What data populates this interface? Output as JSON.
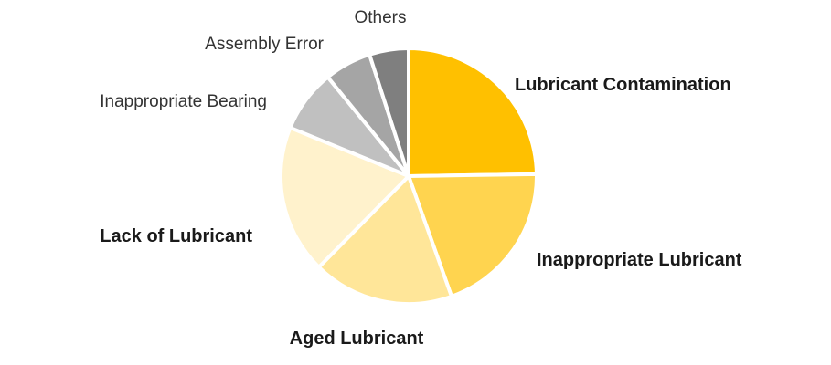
{
  "chart_data": {
    "type": "pie",
    "title": "",
    "slices": [
      {
        "label": "Lubricant Contamination",
        "value": 25,
        "color": "#ffc000",
        "emphasis": true
      },
      {
        "label": "Inappropriate Lubricant",
        "value": 20,
        "color": "#ffd44f",
        "emphasis": true
      },
      {
        "label": "Aged Lubricant",
        "value": 18,
        "color": "#ffe699",
        "emphasis": true
      },
      {
        "label": "Lack of Lubricant",
        "value": 19,
        "color": "#fff2cc",
        "emphasis": true
      },
      {
        "label": "Inappropriate Bearing",
        "value": 8,
        "color": "#c0c0c0",
        "emphasis": false
      },
      {
        "label": "Assembly Error",
        "value": 6,
        "color": "#a5a5a5",
        "emphasis": false
      },
      {
        "label": "Others",
        "value": 5,
        "color": "#7f7f7f",
        "emphasis": false
      }
    ]
  }
}
